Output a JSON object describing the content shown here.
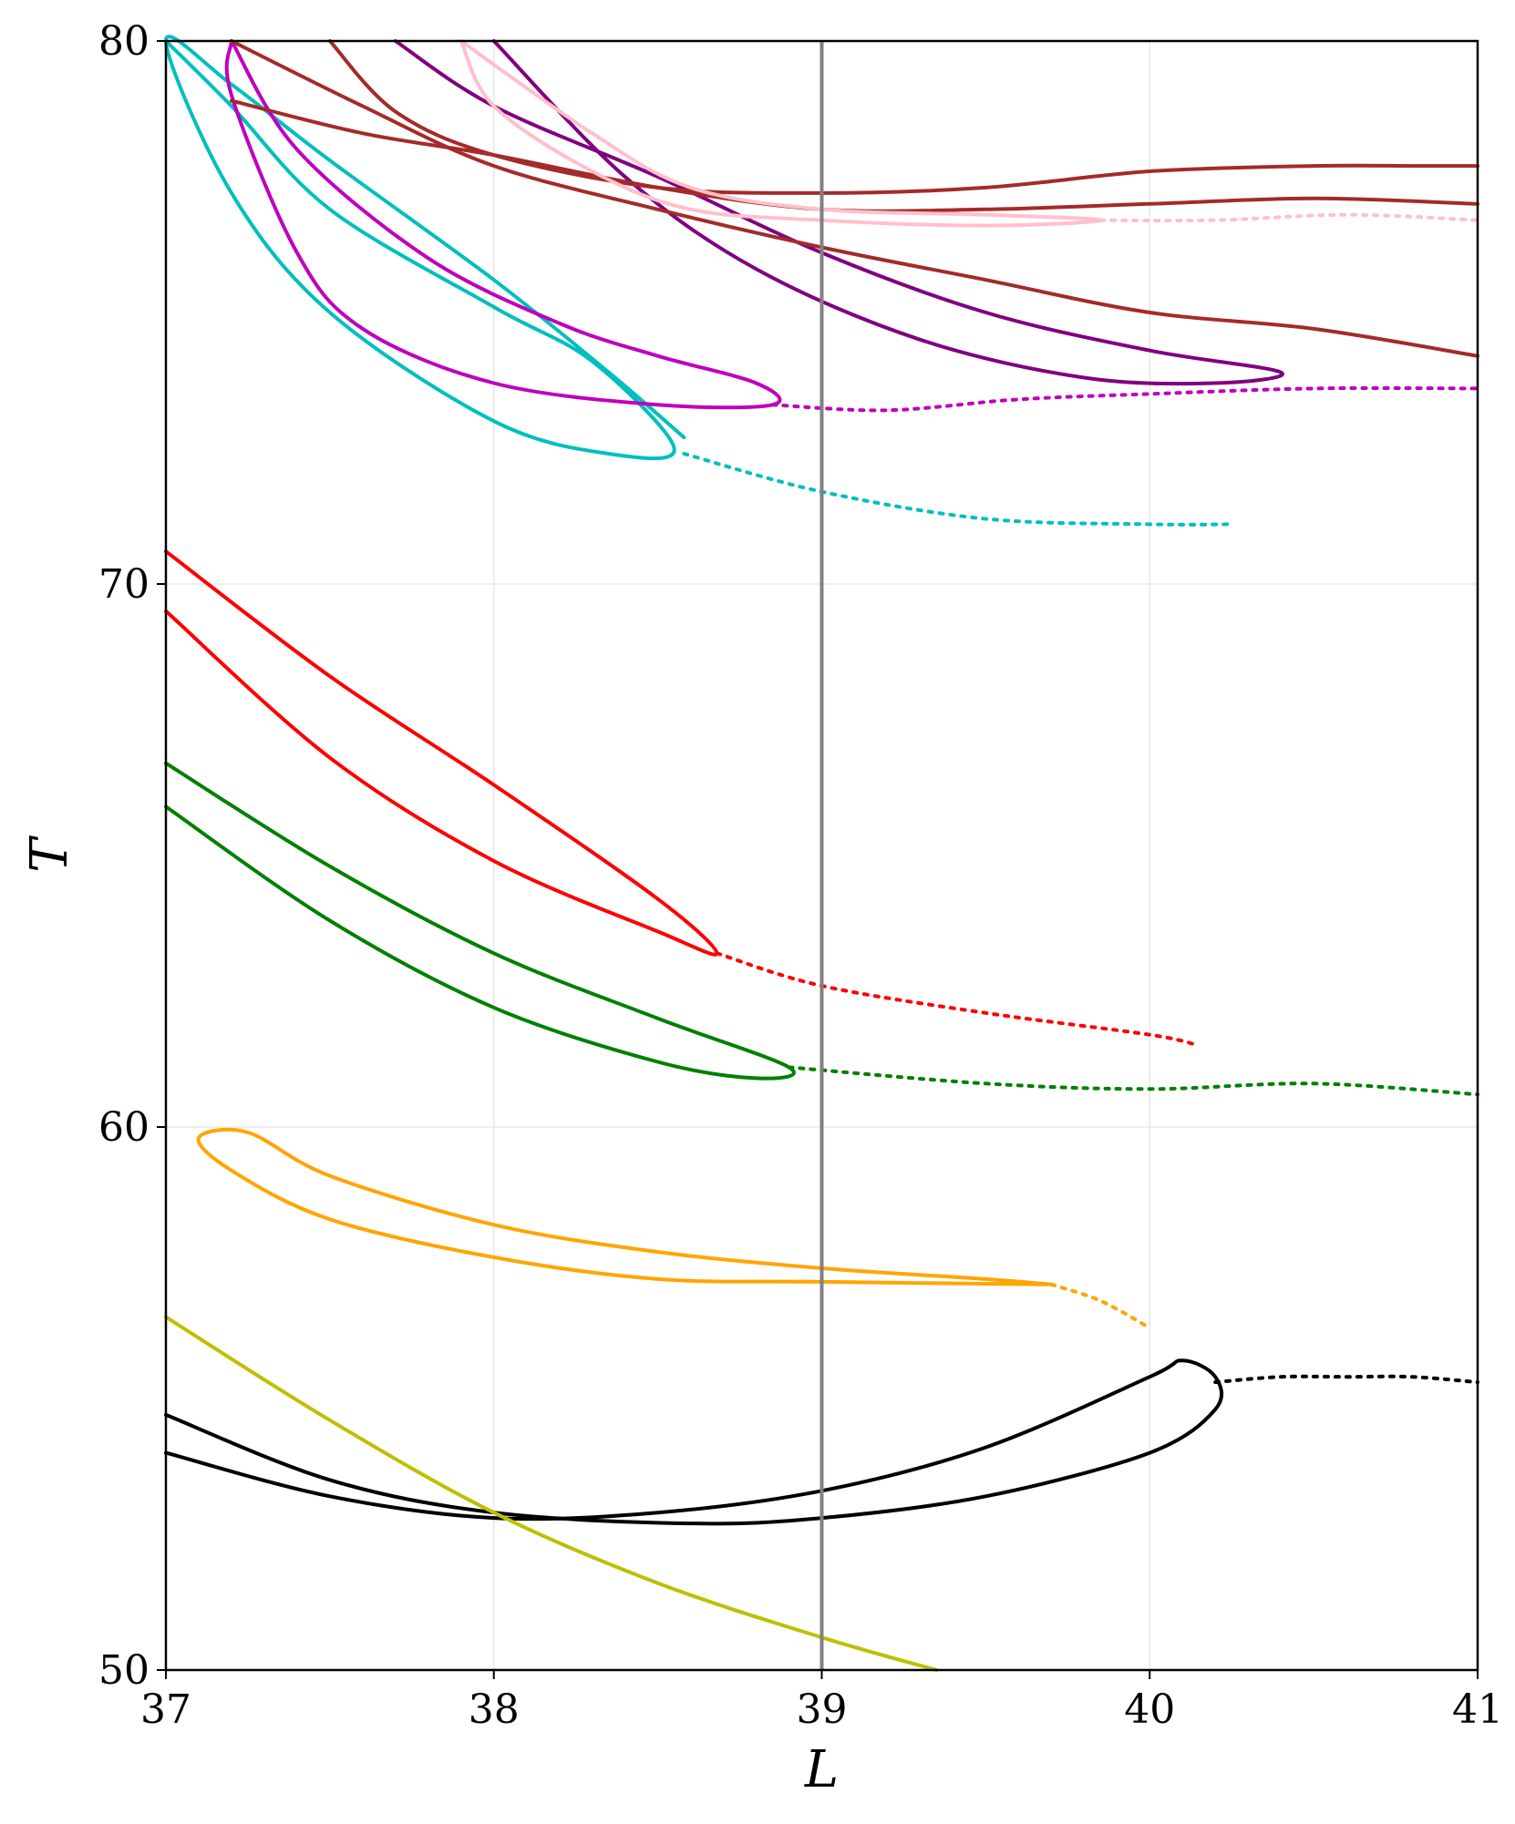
{
  "chart_data": {
    "type": "line",
    "title": "",
    "xlabel": "L",
    "ylabel": "T",
    "xlim": [
      37,
      41
    ],
    "ylim": [
      50,
      80
    ],
    "xticks": [
      37,
      38,
      39,
      40,
      41
    ],
    "yticks": [
      50,
      60,
      70,
      80
    ],
    "grid": true,
    "reference_line": {
      "x": 39,
      "color": "#808080"
    },
    "series": [
      {
        "name": "black",
        "color": "#000000",
        "solid": [
          [
            37,
            54
          ],
          [
            37.5,
            53.2
          ],
          [
            38,
            52.8
          ],
          [
            38.5,
            52.9
          ],
          [
            39,
            53.3
          ],
          [
            39.5,
            54.1
          ],
          [
            40,
            55.4
          ],
          [
            40.1,
            55.7
          ],
          [
            40.2,
            55.4
          ],
          [
            40.2,
            54.8
          ],
          [
            40,
            54
          ],
          [
            39.5,
            53.2
          ],
          [
            39,
            52.8
          ],
          [
            38.6,
            52.7
          ],
          [
            38,
            52.9
          ],
          [
            37.5,
            53.5
          ],
          [
            37,
            54.7
          ]
        ],
        "dotted": [
          [
            40.2,
            55.3
          ],
          [
            40.4,
            55.4
          ],
          [
            40.6,
            55.4
          ],
          [
            40.8,
            55.4
          ],
          [
            41,
            55.3
          ]
        ]
      },
      {
        "name": "yellow-green",
        "color": "#bfbf00",
        "solid": [
          [
            37,
            56.5
          ],
          [
            37.5,
            54.6
          ],
          [
            38,
            52.9
          ],
          [
            38.5,
            51.6
          ],
          [
            39,
            50.6
          ],
          [
            39.35,
            50
          ]
        ],
        "dotted": []
      },
      {
        "name": "orange",
        "color": "#ffa500",
        "solid": [
          [
            39.7,
            57.1
          ],
          [
            39.5,
            57.2
          ],
          [
            39,
            57.4
          ],
          [
            38.5,
            57.7
          ],
          [
            38,
            58.2
          ],
          [
            37.5,
            59.1
          ],
          [
            37.25,
            59.9
          ],
          [
            37.1,
            59.8
          ],
          [
            37.2,
            59.2
          ],
          [
            37.5,
            58.3
          ],
          [
            38,
            57.6
          ],
          [
            38.5,
            57.2
          ],
          [
            39,
            57.15
          ],
          [
            39.7,
            57.1
          ]
        ],
        "dotted": [
          [
            39.7,
            57.1
          ],
          [
            39.85,
            56.8
          ],
          [
            40,
            56.3
          ]
        ]
      },
      {
        "name": "green",
        "color": "#008000",
        "solid": [
          [
            37,
            66.7
          ],
          [
            37.5,
            64.8
          ],
          [
            38,
            63.2
          ],
          [
            38.5,
            62
          ],
          [
            38.9,
            61.1
          ],
          [
            38.8,
            60.9
          ],
          [
            38.5,
            61.2
          ],
          [
            38,
            62.2
          ],
          [
            37.5,
            63.8
          ],
          [
            37,
            65.9
          ]
        ],
        "dotted": [
          [
            38.9,
            61.1
          ],
          [
            39.5,
            60.8
          ],
          [
            40,
            60.7
          ],
          [
            40.5,
            60.8
          ],
          [
            41,
            60.6
          ]
        ]
      },
      {
        "name": "red",
        "color": "#ff0000",
        "solid": [
          [
            37,
            70.6
          ],
          [
            37.5,
            68.3
          ],
          [
            38,
            66.3
          ],
          [
            38.5,
            64.2
          ],
          [
            38.68,
            63.2
          ],
          [
            38.5,
            63.6
          ],
          [
            38,
            64.9
          ],
          [
            37.5,
            66.8
          ],
          [
            37,
            69.5
          ]
        ],
        "dotted": [
          [
            38.68,
            63.2
          ],
          [
            39,
            62.6
          ],
          [
            39.5,
            62.1
          ],
          [
            40,
            61.7
          ],
          [
            40.15,
            61.5
          ]
        ]
      },
      {
        "name": "cyan",
        "color": "#00bfbf",
        "solid": [
          [
            37,
            80
          ],
          [
            37.2,
            78.8
          ],
          [
            37.5,
            76.9
          ],
          [
            38,
            75.1
          ],
          [
            38.3,
            74.1
          ],
          [
            38.55,
            72.5
          ],
          [
            38.35,
            72.4
          ],
          [
            38,
            73
          ],
          [
            37.5,
            75
          ],
          [
            37.2,
            77.2
          ],
          [
            37,
            80
          ],
          [
            37.2,
            79.2
          ],
          [
            37.5,
            77.8
          ],
          [
            38,
            75.6
          ],
          [
            38.35,
            73.9
          ],
          [
            38.58,
            72.7
          ]
        ],
        "dotted": [
          [
            38.58,
            72.4
          ],
          [
            39,
            71.7
          ],
          [
            39.5,
            71.2
          ],
          [
            40,
            71.1
          ],
          [
            40.25,
            71.1
          ]
        ]
      },
      {
        "name": "magenta",
        "color": "#bf00bf",
        "solid": [
          [
            37.2,
            80
          ],
          [
            37.4,
            78
          ],
          [
            37.8,
            76
          ],
          [
            38.2,
            74.8
          ],
          [
            38.5,
            74.2
          ],
          [
            38.8,
            73.7
          ],
          [
            38.85,
            73.3
          ],
          [
            38.5,
            73.3
          ],
          [
            38,
            73.7
          ],
          [
            37.6,
            74.7
          ],
          [
            37.4,
            76.1
          ],
          [
            37.2,
            79
          ],
          [
            37.2,
            80
          ]
        ],
        "dotted": [
          [
            38.85,
            73.3
          ],
          [
            39.2,
            73.2
          ],
          [
            39.6,
            73.4
          ],
          [
            40,
            73.5
          ],
          [
            40.5,
            73.6
          ],
          [
            41,
            73.6
          ]
        ]
      },
      {
        "name": "purple",
        "color": "#800080",
        "solid": [
          [
            37.7,
            80
          ],
          [
            38,
            78.8
          ],
          [
            38.5,
            77.5
          ],
          [
            39,
            76.1
          ],
          [
            39.5,
            75
          ],
          [
            40,
            74.3
          ],
          [
            40.4,
            73.9
          ],
          [
            40.2,
            73.7
          ],
          [
            39.8,
            73.8
          ],
          [
            39.3,
            74.5
          ],
          [
            38.8,
            75.8
          ],
          [
            38.4,
            77.5
          ],
          [
            38,
            80
          ]
        ],
        "dotted": []
      },
      {
        "name": "brown",
        "color": "#a52a2a",
        "solid": [
          [
            37.2,
            80
          ],
          [
            37.6,
            78.8
          ],
          [
            38,
            77.7
          ],
          [
            38.5,
            76.9
          ],
          [
            39,
            76.2
          ],
          [
            39.5,
            75.6
          ],
          [
            40,
            75
          ],
          [
            40.5,
            74.7
          ],
          [
            41,
            74.2
          ]
        ],
        "dotted": []
      },
      {
        "name": "brown-2",
        "color": "#a52a2a",
        "solid": [
          [
            37.5,
            80
          ],
          [
            37.7,
            78.7
          ],
          [
            38,
            77.9
          ],
          [
            38.5,
            77.3
          ],
          [
            39,
            77.2
          ],
          [
            39.5,
            77.3
          ],
          [
            40,
            77.6
          ],
          [
            40.5,
            77.7
          ],
          [
            40.8,
            77.7
          ],
          [
            41,
            77.7
          ]
        ],
        "dotted": []
      },
      {
        "name": "brown-3",
        "color": "#a52a2a",
        "solid": [
          [
            37.2,
            78.9
          ],
          [
            37.6,
            78.3
          ],
          [
            38,
            77.9
          ],
          [
            38.5,
            77.3
          ],
          [
            39,
            76.9
          ],
          [
            39.5,
            76.9
          ],
          [
            40,
            77
          ],
          [
            40.5,
            77.1
          ],
          [
            41,
            77
          ]
        ],
        "dotted": []
      },
      {
        "name": "pink",
        "color": "#ffc0cb",
        "solid": [
          [
            37.9,
            80
          ],
          [
            38.3,
            78.3
          ],
          [
            38.6,
            77.3
          ],
          [
            39,
            76.9
          ],
          [
            39.5,
            76.8
          ],
          [
            39.85,
            76.7
          ],
          [
            39.5,
            76.6
          ],
          [
            39,
            76.7
          ],
          [
            38.6,
            76.9
          ],
          [
            38.3,
            77.6
          ],
          [
            38,
            78.8
          ],
          [
            37.9,
            80
          ]
        ],
        "dotted": [
          [
            39.85,
            76.7
          ],
          [
            40.2,
            76.7
          ],
          [
            40.6,
            76.8
          ],
          [
            41,
            76.7
          ]
        ]
      }
    ]
  }
}
